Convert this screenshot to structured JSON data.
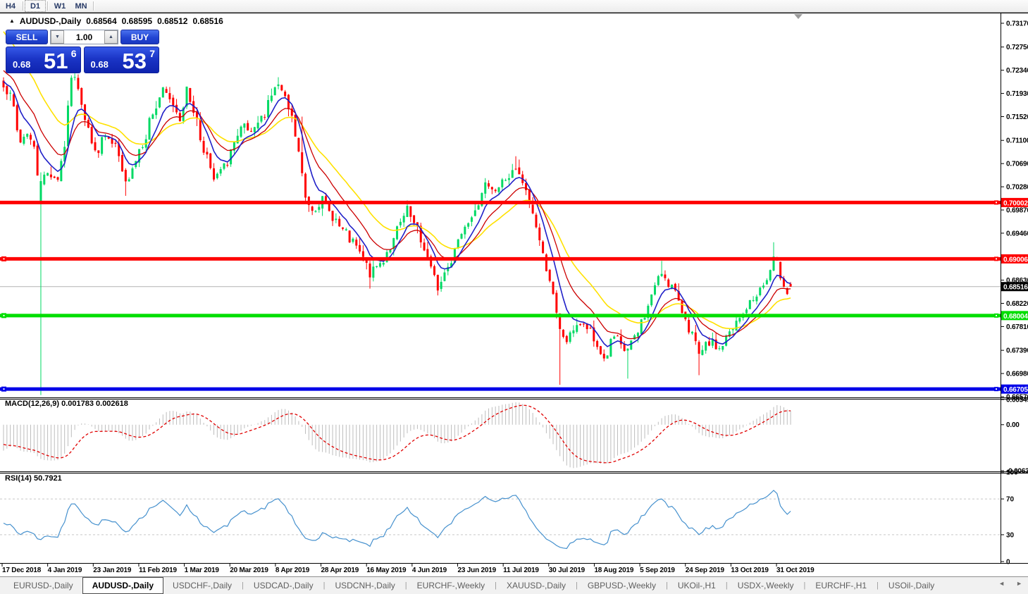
{
  "toolbar": {
    "timeframes": [
      "H4",
      "D1",
      "W1",
      "MN"
    ],
    "active": "D1"
  },
  "chart_title": {
    "marker": "▲",
    "symbol": "AUDUSD-,Daily",
    "open": "0.68564",
    "high": "0.68595",
    "low": "0.68512",
    "close": "0.68516"
  },
  "trade_panel": {
    "sell_label": "SELL",
    "buy_label": "BUY",
    "volume": "1.00",
    "spinner_down_icon": "▼",
    "spinner_up_icon": "▲",
    "sell_price": {
      "prefix": "0.68",
      "big": "51",
      "sup": "6"
    },
    "buy_price": {
      "prefix": "0.68",
      "big": "53",
      "sup": "7"
    }
  },
  "indicators": {
    "macd_label": "MACD(12,26,9) 0.001783 0.002618",
    "rsi_label": "RSI(14) 50.7921"
  },
  "tabs": {
    "active_index": 1,
    "left_arrow": "◄",
    "right_arrow": "►",
    "items": [
      "EURUSD-,Daily",
      "AUDUSD-,Daily",
      "USDCHF-,Daily",
      "USDCAD-,Daily",
      "USDCNH-,Daily",
      "EURCHF-,Weekly",
      "XAUUSD-,Daily",
      "GBPUSD-,Weekly",
      "UKOil-,H1",
      "USDX-,Weekly",
      "EURCHF-,H1",
      "USOil-,Daily"
    ],
    "shift_marker_icon": "▼"
  },
  "chart_data": {
    "type": "candlestick",
    "symbol": "AUDUSD-,Daily",
    "ylim": [
      0.6657,
      0.7317
    ],
    "price_axis_ticks": [
      {
        "t": "0.73170",
        "p": 0.7317
      },
      {
        "t": "0.72750",
        "p": 0.7275
      },
      {
        "t": "0.72340",
        "p": 0.7234
      },
      {
        "t": "0.71930",
        "p": 0.7193
      },
      {
        "t": "0.71520",
        "p": 0.7152
      },
      {
        "t": "0.71100",
        "p": 0.711
      },
      {
        "t": "0.70690",
        "p": 0.7069
      },
      {
        "t": "0.70280",
        "p": 0.7028
      },
      {
        "t": "0.69870",
        "p": 0.6987
      },
      {
        "t": "0.69460",
        "p": 0.6946
      },
      {
        "t": "0.68630",
        "p": 0.6863
      },
      {
        "t": "0.68220",
        "p": 0.6822
      },
      {
        "t": "0.67810",
        "p": 0.6781
      },
      {
        "t": "0.67390",
        "p": 0.6739
      },
      {
        "t": "0.66980",
        "p": 0.6698
      },
      {
        "t": "0.66570",
        "p": 0.6657
      }
    ],
    "levels": [
      {
        "p": 0.70002,
        "t": "0.70002",
        "color": "#FE0000",
        "marker": false
      },
      {
        "p": 0.69006,
        "t": "0.69006",
        "color": "#FE0000",
        "marker": true
      },
      {
        "p": 0.68004,
        "t": "0.68004",
        "color": "#00DE00",
        "marker": true
      },
      {
        "p": 0.66705,
        "t": "0.66705",
        "color": "#0000E8",
        "marker": true
      }
    ],
    "current_price": {
      "p": 0.68516,
      "t": "0.68516",
      "line_color": "#B2B2B2",
      "tag_color": "#000000"
    },
    "x_axis": {
      "labels": [
        "17 Dec 2018",
        "4 Jan 2019",
        "23 Jan 2019",
        "11 Feb 2019",
        "1 Mar 2019",
        "20 Mar 2019",
        "8 Apr 2019",
        "28 Apr 2019",
        "16 May 2019",
        "4 Jun 2019",
        "23 Jun 2019",
        "11 Jul 2019",
        "30 Jul 2019",
        "18 Aug 2019",
        "5 Sep 2019",
        "24 Sep 2019",
        "13 Oct 2019",
        "31 Oct 2019"
      ]
    },
    "colors": {
      "bull": "#00D964",
      "bear": "#FF0000",
      "ma_fast": "#2020C8",
      "ma_mid": "#CC0000",
      "ma_slow": "#FFE100",
      "macd_bar": "#BDBDBD",
      "macd_signal": "#E00000",
      "rsi_line": "#4691CE",
      "rsi_level": "#C6C6C6"
    },
    "ma": {
      "periods": {
        "fast": 7,
        "mid": 14,
        "slow": 26
      },
      "seeds": {
        "fast": 0.7218,
        "mid": 0.7238,
        "slow": 0.731
      }
    },
    "macd": {
      "params": [
        12,
        26,
        9
      ],
      "range": [
        -0.00637,
        0.00349
      ],
      "seeds": {
        "fast": -0.0015,
        "slow": 0.0025,
        "signal": -0.0025
      },
      "axis": [
        {
          "t": "0.00349",
          "v": 0.00349
        },
        {
          "t": "0.00",
          "v": 0
        },
        {
          "t": "-0.00637",
          "v": -0.00637
        }
      ],
      "last_values": [
        0.001783,
        0.002618
      ]
    },
    "rsi": {
      "period": 14,
      "levels": [
        70,
        30
      ],
      "last_value": 50.7921,
      "axis": [
        {
          "t": "100",
          "v": 100
        },
        {
          "t": "70",
          "v": 70
        },
        {
          "t": "30",
          "v": 30
        },
        {
          "t": "0",
          "v": 0
        }
      ],
      "seed_gain": 0.0009,
      "seed_loss": 0.0012,
      "seed_value": 43
    },
    "candles": {
      "count": 233,
      "noise": {
        "body": 0.00085,
        "gap": 0.00028,
        "wick": 0.0016
      },
      "anchors": [
        [
          0,
          0.7212
        ],
        [
          2,
          0.7186
        ],
        [
          5,
          0.7108
        ],
        [
          7,
          0.7126
        ],
        [
          9,
          0.7095
        ],
        [
          10,
          0.7052
        ],
        [
          11,
          0.7038
        ],
        [
          13,
          0.7052
        ],
        [
          16,
          0.7044
        ],
        [
          18,
          0.7102
        ],
        [
          20,
          0.7225
        ],
        [
          22,
          0.7206
        ],
        [
          24,
          0.7152
        ],
        [
          27,
          0.7088
        ],
        [
          30,
          0.7116
        ],
        [
          33,
          0.7096
        ],
        [
          36,
          0.7032
        ],
        [
          38,
          0.7066
        ],
        [
          41,
          0.7106
        ],
        [
          44,
          0.7158
        ],
        [
          47,
          0.7196
        ],
        [
          50,
          0.7174
        ],
        [
          52,
          0.715
        ],
        [
          54,
          0.7198
        ],
        [
          56,
          0.7164
        ],
        [
          59,
          0.7096
        ],
        [
          62,
          0.704
        ],
        [
          65,
          0.7062
        ],
        [
          68,
          0.7104
        ],
        [
          71,
          0.7134
        ],
        [
          73,
          0.7118
        ],
        [
          76,
          0.7148
        ],
        [
          79,
          0.7192
        ],
        [
          81,
          0.7208
        ],
        [
          83,
          0.718
        ],
        [
          85,
          0.7148
        ],
        [
          87,
          0.7088
        ],
        [
          89,
          0.7008
        ],
        [
          91,
          0.699
        ],
        [
          94,
          0.7004
        ],
        [
          97,
          0.6976
        ],
        [
          100,
          0.695
        ],
        [
          103,
          0.6928
        ],
        [
          106,
          0.6902
        ],
        [
          108,
          0.6874
        ],
        [
          111,
          0.6892
        ],
        [
          114,
          0.6922
        ],
        [
          117,
          0.6962
        ],
        [
          119,
          0.6986
        ],
        [
          121,
          0.696
        ],
        [
          124,
          0.692
        ],
        [
          126,
          0.6882
        ],
        [
          128,
          0.685
        ],
        [
          131,
          0.6886
        ],
        [
          134,
          0.6936
        ],
        [
          137,
          0.6972
        ],
        [
          140,
          0.7002
        ],
        [
          143,
          0.7036
        ],
        [
          145,
          0.7022
        ],
        [
          148,
          0.7042
        ],
        [
          151,
          0.7056
        ],
        [
          153,
          0.7034
        ],
        [
          155,
          0.7
        ],
        [
          157,
          0.696
        ],
        [
          159,
          0.6906
        ],
        [
          161,
          0.6866
        ],
        [
          163,
          0.68
        ],
        [
          164,
          0.6772
        ],
        [
          166,
          0.6756
        ],
        [
          169,
          0.6786
        ],
        [
          172,
          0.6778
        ],
        [
          175,
          0.6746
        ],
        [
          177,
          0.6724
        ],
        [
          180,
          0.6762
        ],
        [
          183,
          0.6738
        ],
        [
          186,
          0.6758
        ],
        [
          189,
          0.6802
        ],
        [
          192,
          0.6852
        ],
        [
          194,
          0.6876
        ],
        [
          197,
          0.6852
        ],
        [
          200,
          0.6808
        ],
        [
          203,
          0.6768
        ],
        [
          205,
          0.6728
        ],
        [
          208,
          0.6752
        ],
        [
          211,
          0.6742
        ],
        [
          214,
          0.6768
        ],
        [
          217,
          0.6794
        ],
        [
          220,
          0.6822
        ],
        [
          223,
          0.6846
        ],
        [
          225,
          0.6862
        ],
        [
          227,
          0.6898
        ],
        [
          228,
          0.689
        ],
        [
          229,
          0.6872
        ],
        [
          230,
          0.6858
        ],
        [
          231,
          0.6842
        ],
        [
          232,
          0.68516
        ]
      ],
      "specials": {
        "11": {
          "o": 0.7,
          "c": 0.7038,
          "l": 0.666
        },
        "36": {
          "l": 0.7012
        },
        "88": {
          "h": 0.7152
        },
        "91": {
          "l": 0.6978
        },
        "108": {
          "l": 0.6848
        },
        "119": {
          "h": 0.7004
        },
        "128": {
          "l": 0.6836
        },
        "151": {
          "h": 0.7082
        },
        "164": {
          "l": 0.6678
        },
        "184": {
          "l": 0.6689
        },
        "194": {
          "h": 0.6897
        },
        "205": {
          "l": 0.6695
        },
        "227": {
          "h": 0.693
        },
        "232": {
          "o": 0.68564,
          "h": 0.68595,
          "l": 0.68512,
          "c": 0.68516
        }
      }
    }
  }
}
